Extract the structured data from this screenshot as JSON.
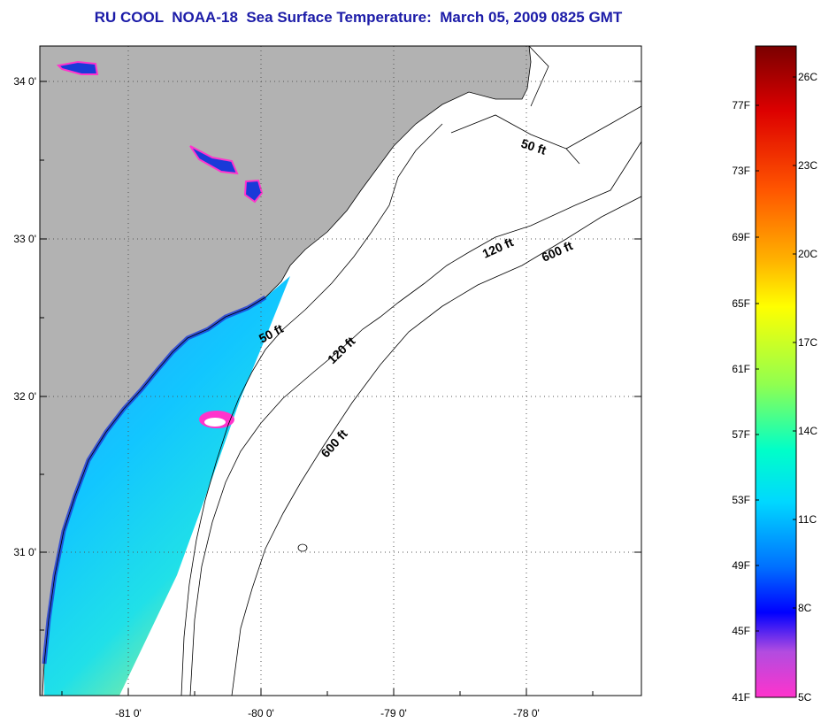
{
  "title": "RU COOL  NOAA-18  Sea Surface Temperature:  March 05, 2009 0825 GMT",
  "map": {
    "lon_labels": [
      "-81 0'",
      "-80 0'",
      "-79 0'",
      "-78 0'"
    ],
    "lat_labels": [
      "34 0'",
      "33 0'",
      "32 0'",
      "31 0'"
    ],
    "contour_labels": [
      "50 ft",
      "50 ft",
      "120 ft",
      "120 ft",
      "600 ft",
      "600 ft"
    ]
  },
  "colorbar": {
    "fahrenheit_labels": [
      "77F",
      "73F",
      "69F",
      "65F",
      "61F",
      "57F",
      "53F",
      "49F",
      "45F",
      "41F"
    ],
    "celsius_labels": [
      "26C",
      "23C",
      "20C",
      "17C",
      "14C",
      "11C",
      "8C",
      "5C"
    ]
  },
  "colors": {
    "title": "#1c1ca8",
    "land": "#b2b2b2",
    "ocean": "#ffffff",
    "gridline": "#555555"
  }
}
